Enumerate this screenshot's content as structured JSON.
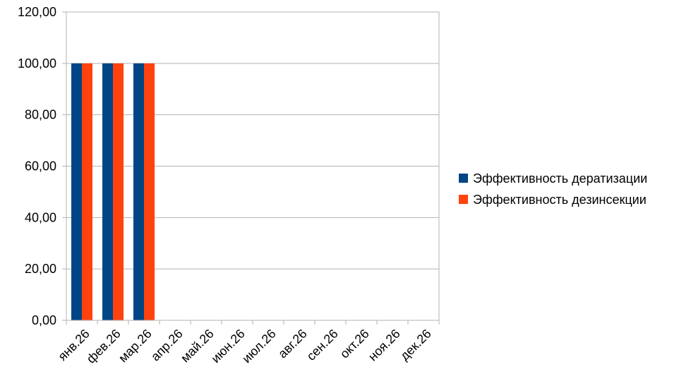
{
  "chart_data": {
    "type": "bar",
    "categories": [
      "янв.26",
      "фев.26",
      "мар.26",
      "апр.26",
      "май.26",
      "июн.26",
      "июл.26",
      "авг.26",
      "сен.26",
      "окт.26",
      "ноя.26",
      "дек.26"
    ],
    "series": [
      {
        "name": "Эффективность дератизации",
        "color": "#004586",
        "values": [
          100,
          100,
          100,
          null,
          null,
          null,
          null,
          null,
          null,
          null,
          null,
          null
        ]
      },
      {
        "name": "Эффективность дезинсекции",
        "color": "#ff420e",
        "values": [
          100,
          100,
          100,
          null,
          null,
          null,
          null,
          null,
          null,
          null,
          null,
          null
        ]
      }
    ],
    "y_ticks": [
      "0,00",
      "20,00",
      "40,00",
      "60,00",
      "80,00",
      "100,00",
      "120,00"
    ],
    "ylim": [
      0,
      120
    ],
    "grid": true,
    "legend_position": "right",
    "title": "",
    "xlabel": "",
    "ylabel": ""
  }
}
